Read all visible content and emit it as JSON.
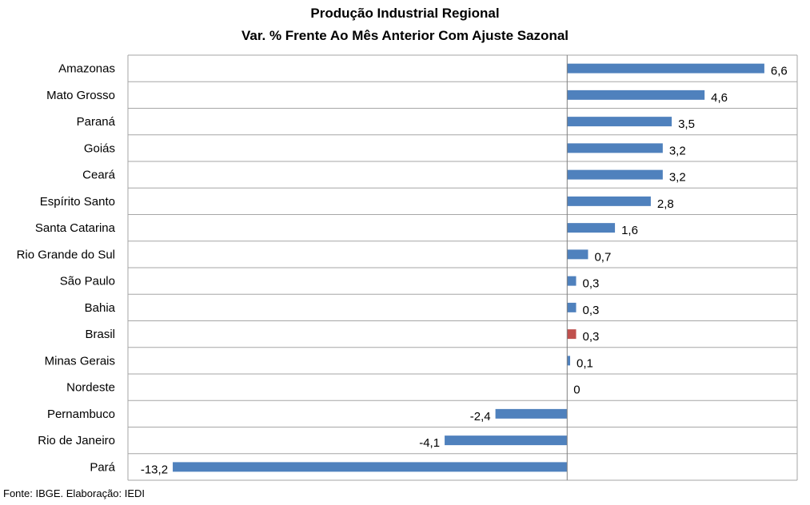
{
  "header": {
    "title_line1": "Produção Industrial Regional",
    "title_line2": "Var. % Frente Ao Mês Anterior Com Ajuste Sazonal"
  },
  "footer": {
    "source": "Fonte: IBGE. Elaboração: IEDI"
  },
  "colors": {
    "bar": "#4f81bd",
    "highlight_bar": "#c0504d",
    "grid": "#a6a6a6"
  },
  "chart_data": {
    "type": "bar",
    "orientation": "horizontal",
    "title": "Produção Industrial Regional / Var. % Frente Ao Mês Anterior Com Ajuste Sazonal",
    "categories": [
      "Amazonas",
      "Mato Grosso",
      "Paraná",
      "Goiás",
      "Ceará",
      "Espírito Santo",
      "Santa Catarina",
      "Rio Grande do Sul",
      "São Paulo",
      "Bahia",
      "Brasil",
      "Minas Gerais",
      "Nordeste",
      "Pernambuco",
      "Rio de Janeiro",
      "Pará"
    ],
    "values": [
      6.6,
      4.6,
      3.5,
      3.2,
      3.2,
      2.8,
      1.6,
      0.7,
      0.3,
      0.3,
      0.3,
      0.1,
      0,
      -2.4,
      -4.1,
      -13.2
    ],
    "value_labels": [
      "6,6",
      "4,6",
      "3,5",
      "3,2",
      "3,2",
      "2,8",
      "1,6",
      "0,7",
      "0,3",
      "0,3",
      "0,3",
      "0,1",
      "0",
      "-2,4",
      "-4,1",
      "-13,2"
    ],
    "highlight_category": "Brasil",
    "xlim": [
      -14.7,
      7.7
    ],
    "grid": true,
    "legend": "none"
  }
}
